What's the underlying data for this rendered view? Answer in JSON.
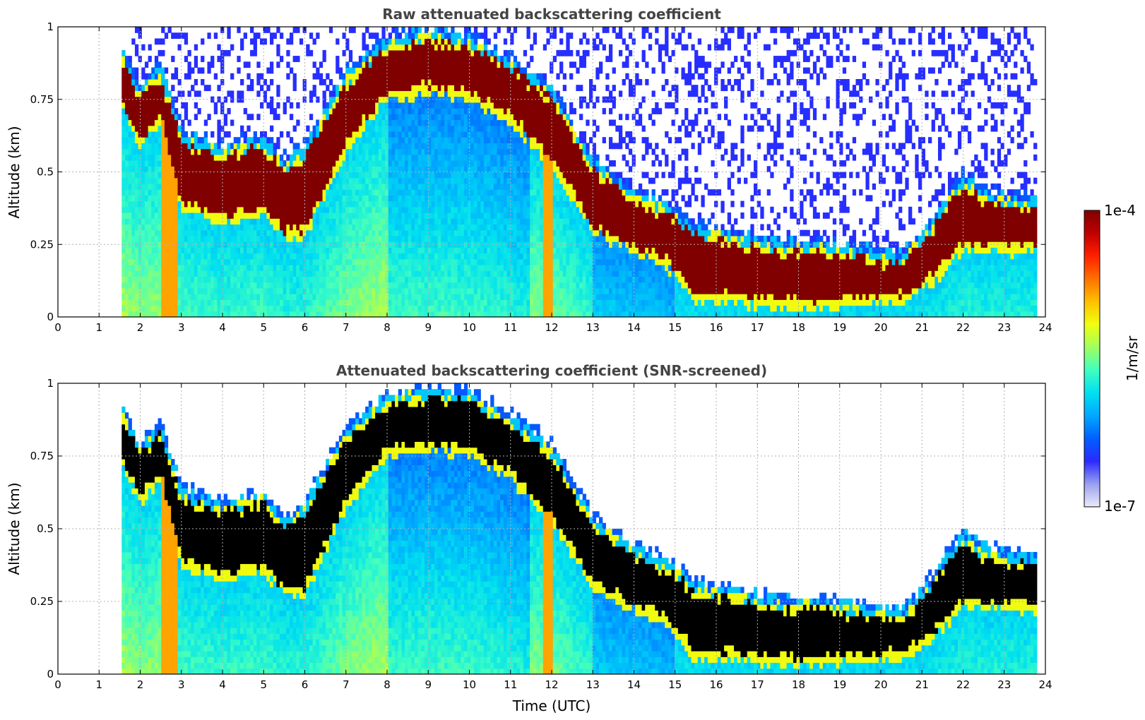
{
  "chart_data": [
    {
      "type": "heatmap",
      "title": "Raw attenuated backscattering coefficient",
      "xlabel": "",
      "ylabel": "Altitude (km)",
      "xlim": [
        0,
        24
      ],
      "ylim": [
        0,
        1
      ],
      "xticks": [
        "0",
        "1",
        "2",
        "3",
        "4",
        "5",
        "6",
        "7",
        "8",
        "9",
        "10",
        "11",
        "12",
        "13",
        "14",
        "15",
        "16",
        "17",
        "18",
        "19",
        "20",
        "21",
        "22",
        "23",
        "24"
      ],
      "yticks": [
        "0",
        "0.25",
        "0.5",
        "0.75",
        "1"
      ],
      "grid": true,
      "data_start_time": 1.55,
      "data_end_time": 23.75,
      "layer_top_profile": {
        "time": [
          1.55,
          2.0,
          2.5,
          3.0,
          4.0,
          5.0,
          5.5,
          6.0,
          7.0,
          8.0,
          9.0,
          10.0,
          11.0,
          12.0,
          13.0,
          14.0,
          14.8,
          15.5,
          16.5,
          17.5,
          18.5,
          19.5,
          20.5,
          21.0,
          21.5,
          22.0,
          22.5,
          23.0,
          23.75
        ],
        "altitude_km": [
          0.88,
          0.75,
          0.82,
          0.6,
          0.55,
          0.58,
          0.5,
          0.55,
          0.8,
          0.92,
          0.95,
          0.93,
          0.85,
          0.75,
          0.5,
          0.4,
          0.35,
          0.28,
          0.25,
          0.22,
          0.22,
          0.2,
          0.18,
          0.25,
          0.35,
          0.45,
          0.4,
          0.38,
          0.37
        ]
      },
      "layer_bottom_profile": {
        "time": [
          1.55,
          2.0,
          2.5,
          3.0,
          4.0,
          5.0,
          5.5,
          6.0,
          7.0,
          8.0,
          9.0,
          10.0,
          11.0,
          12.0,
          13.0,
          14.0,
          14.8,
          15.5,
          16.5,
          17.5,
          18.5,
          19.5,
          20.5,
          21.0,
          21.5,
          22.0,
          22.5,
          23.0,
          23.75
        ],
        "altitude_km": [
          0.75,
          0.62,
          0.7,
          0.4,
          0.35,
          0.38,
          0.3,
          0.3,
          0.6,
          0.78,
          0.8,
          0.78,
          0.7,
          0.55,
          0.32,
          0.25,
          0.2,
          0.08,
          0.08,
          0.06,
          0.06,
          0.07,
          0.08,
          0.12,
          0.18,
          0.26,
          0.25,
          0.25,
          0.25
        ]
      }
    },
    {
      "type": "heatmap",
      "title": "Attenuated backscattering coefficient (SNR-screened)",
      "xlabel": "Time (UTC)",
      "ylabel": "Altitude (km)",
      "xlim": [
        0,
        24
      ],
      "ylim": [
        0,
        1
      ],
      "xticks": [
        "0",
        "1",
        "2",
        "3",
        "4",
        "5",
        "6",
        "7",
        "8",
        "9",
        "10",
        "11",
        "12",
        "13",
        "14",
        "15",
        "16",
        "17",
        "18",
        "19",
        "20",
        "21",
        "22",
        "23",
        "24"
      ],
      "yticks": [
        "0",
        "0.25",
        "0.5",
        "0.75",
        "1"
      ],
      "grid": true,
      "data_start_time": 1.55,
      "data_end_time": 23.75,
      "screened_color": "#000000"
    }
  ],
  "colorbar": {
    "label": "1/m/sr",
    "max_label": "1e-4",
    "min_label": "1e-7",
    "scale": "log",
    "colormap": [
      "#ebebf7",
      "#9aa0f0",
      "#2a2aff",
      "#0060ff",
      "#00a8ff",
      "#00e0f0",
      "#40ffc0",
      "#a0ff60",
      "#f0ff10",
      "#ffc000",
      "#ff7000",
      "#ff2000",
      "#c00000",
      "#800000"
    ]
  }
}
